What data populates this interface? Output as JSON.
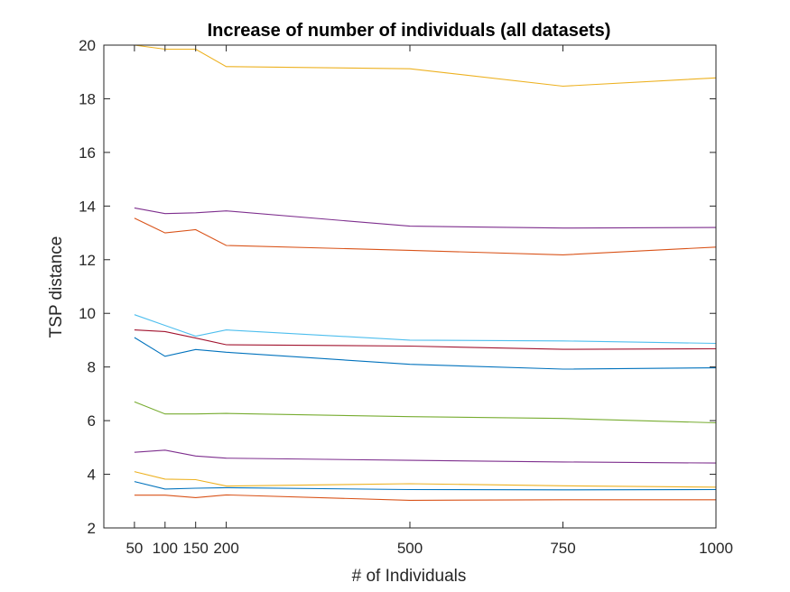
{
  "chart_data": {
    "type": "line",
    "title": "Increase of number of individuals (all datasets)",
    "xlabel": "# of Individuals",
    "ylabel": "TSP distance",
    "x": [
      50,
      100,
      150,
      200,
      500,
      750,
      1000
    ],
    "x_ticks": [
      "50",
      "100",
      "150",
      "200",
      "500",
      "750",
      "1000"
    ],
    "y_ticks": [
      "2",
      "4",
      "6",
      "8",
      "10",
      "12",
      "14",
      "16",
      "18",
      "20"
    ],
    "xlim": [
      0,
      1000
    ],
    "ylim": [
      2,
      20
    ],
    "grid": false,
    "series": [
      {
        "color": "#0072BD",
        "values": [
          9.1,
          8.4,
          8.65,
          8.55,
          8.1,
          7.92,
          7.97
        ]
      },
      {
        "color": "#D95319",
        "values": [
          13.55,
          13.0,
          13.12,
          12.53,
          12.35,
          12.18,
          12.47
        ]
      },
      {
        "color": "#EDB120",
        "values": [
          20.0,
          19.85,
          19.85,
          19.2,
          19.12,
          18.47,
          18.78
        ]
      },
      {
        "color": "#7E2F8E",
        "values": [
          13.93,
          13.72,
          13.75,
          13.82,
          13.25,
          13.18,
          13.2
        ]
      },
      {
        "color": "#77AC30",
        "values": [
          6.7,
          6.25,
          6.25,
          6.27,
          6.15,
          6.08,
          5.92
        ]
      },
      {
        "color": "#4DBEEE",
        "values": [
          9.95,
          9.55,
          9.15,
          9.38,
          9.0,
          8.97,
          8.88
        ]
      },
      {
        "color": "#A2142F",
        "values": [
          9.38,
          9.32,
          9.08,
          8.83,
          8.78,
          8.66,
          8.68
        ]
      },
      {
        "color": "#0072BD",
        "values": [
          3.73,
          3.45,
          3.48,
          3.5,
          3.43,
          3.42,
          3.43
        ]
      },
      {
        "color": "#D95319",
        "values": [
          3.22,
          3.22,
          3.13,
          3.23,
          3.03,
          3.05,
          3.05
        ]
      },
      {
        "color": "#EDB120",
        "values": [
          4.1,
          3.82,
          3.8,
          3.56,
          3.65,
          3.57,
          3.52
        ]
      },
      {
        "color": "#7E2F8E",
        "values": [
          4.82,
          4.9,
          4.68,
          4.6,
          4.52,
          4.46,
          4.42
        ]
      }
    ]
  }
}
